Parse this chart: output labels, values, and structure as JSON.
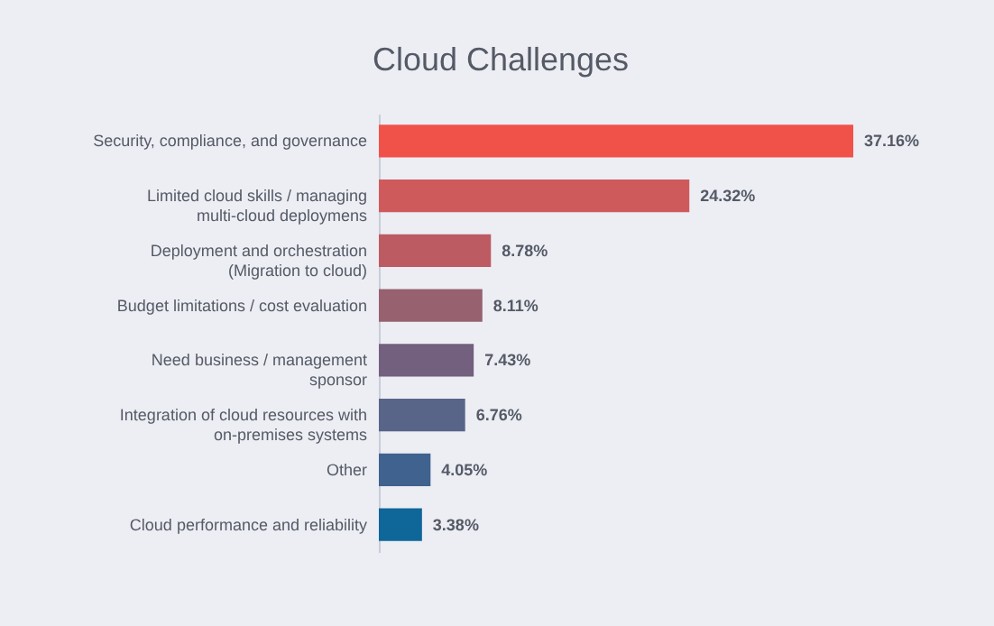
{
  "chart_data": {
    "type": "bar",
    "orientation": "horizontal",
    "title": "Cloud Challenges",
    "categories": [
      "Security, compliance, and governance",
      "Limited cloud skills /  managing\nmulti-cloud deploymens",
      "Deployment and orchestration\n(Migration to cloud)",
      "Budget limitations / cost evaluation",
      "Need business / management\nsponsor",
      "Integration of cloud resources with\non-premises systems",
      "Other",
      "Cloud performance and reliability"
    ],
    "values": [
      37.16,
      24.32,
      8.78,
      8.11,
      7.43,
      6.76,
      4.05,
      3.38
    ],
    "value_labels": [
      "37.16%",
      "24.32%",
      "8.78%",
      "8.11%",
      "7.43%",
      "6.76%",
      "4.05%",
      "3.38%"
    ],
    "colors": [
      "#f0524a",
      "#cf5a5c",
      "#bd5b62",
      "#976170",
      "#735f7e",
      "#596489",
      "#3f628e",
      "#0f6699"
    ]
  }
}
